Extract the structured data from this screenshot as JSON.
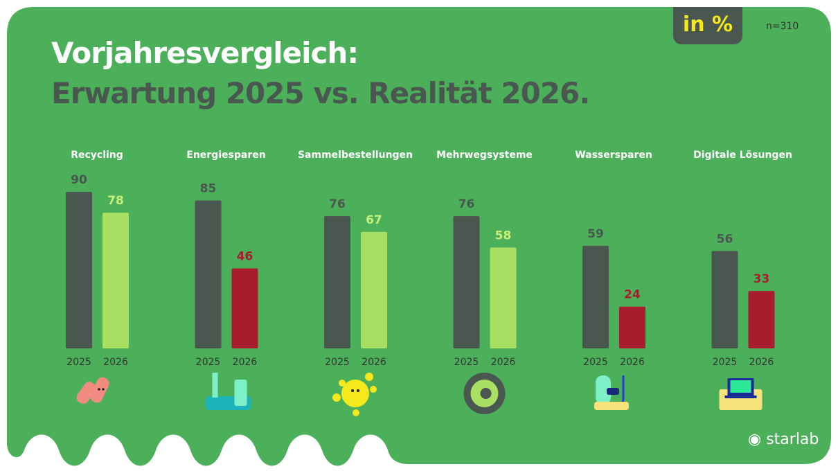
{
  "header": {
    "title_line1": "Vorjahresvergleich:",
    "title_line2": "Erwartung 2025 vs. Realität 2026.",
    "unit_badge": "in %",
    "sample": "n=310"
  },
  "logo": "starlab",
  "chart_data": {
    "type": "bar",
    "categories": [
      "Recycling",
      "Energiesparen",
      "Sammelbestellungen",
      "Mehrwegsysteme",
      "Wassersparen",
      "Digitale Lösungen"
    ],
    "series": [
      {
        "name": "2025",
        "values": [
          90,
          85,
          76,
          76,
          59,
          56
        ],
        "colors": [
          "#4a5650",
          "#4a5650",
          "#4a5650",
          "#4a5650",
          "#4a5650",
          "#4a5650"
        ]
      },
      {
        "name": "2026",
        "values": [
          78,
          46,
          67,
          58,
          24,
          33
        ],
        "colors": [
          "#a8e063",
          "#a81c2e",
          "#a8e063",
          "#a8e063",
          "#a81c2e",
          "#a81c2e"
        ]
      }
    ],
    "ylim": [
      0,
      100
    ],
    "grid": false,
    "legend": "none",
    "icons": [
      "recycling-character-icon",
      "energy-character-icon",
      "sun-character-icon",
      "reusable-cup-icon",
      "snorkel-character-icon",
      "laptop-icon"
    ]
  },
  "colors": {
    "background": "#4caf5a",
    "dark": "#4a5650",
    "light": "#a8e063",
    "red": "#a81c2e",
    "badge_text": "#f5e81c"
  }
}
